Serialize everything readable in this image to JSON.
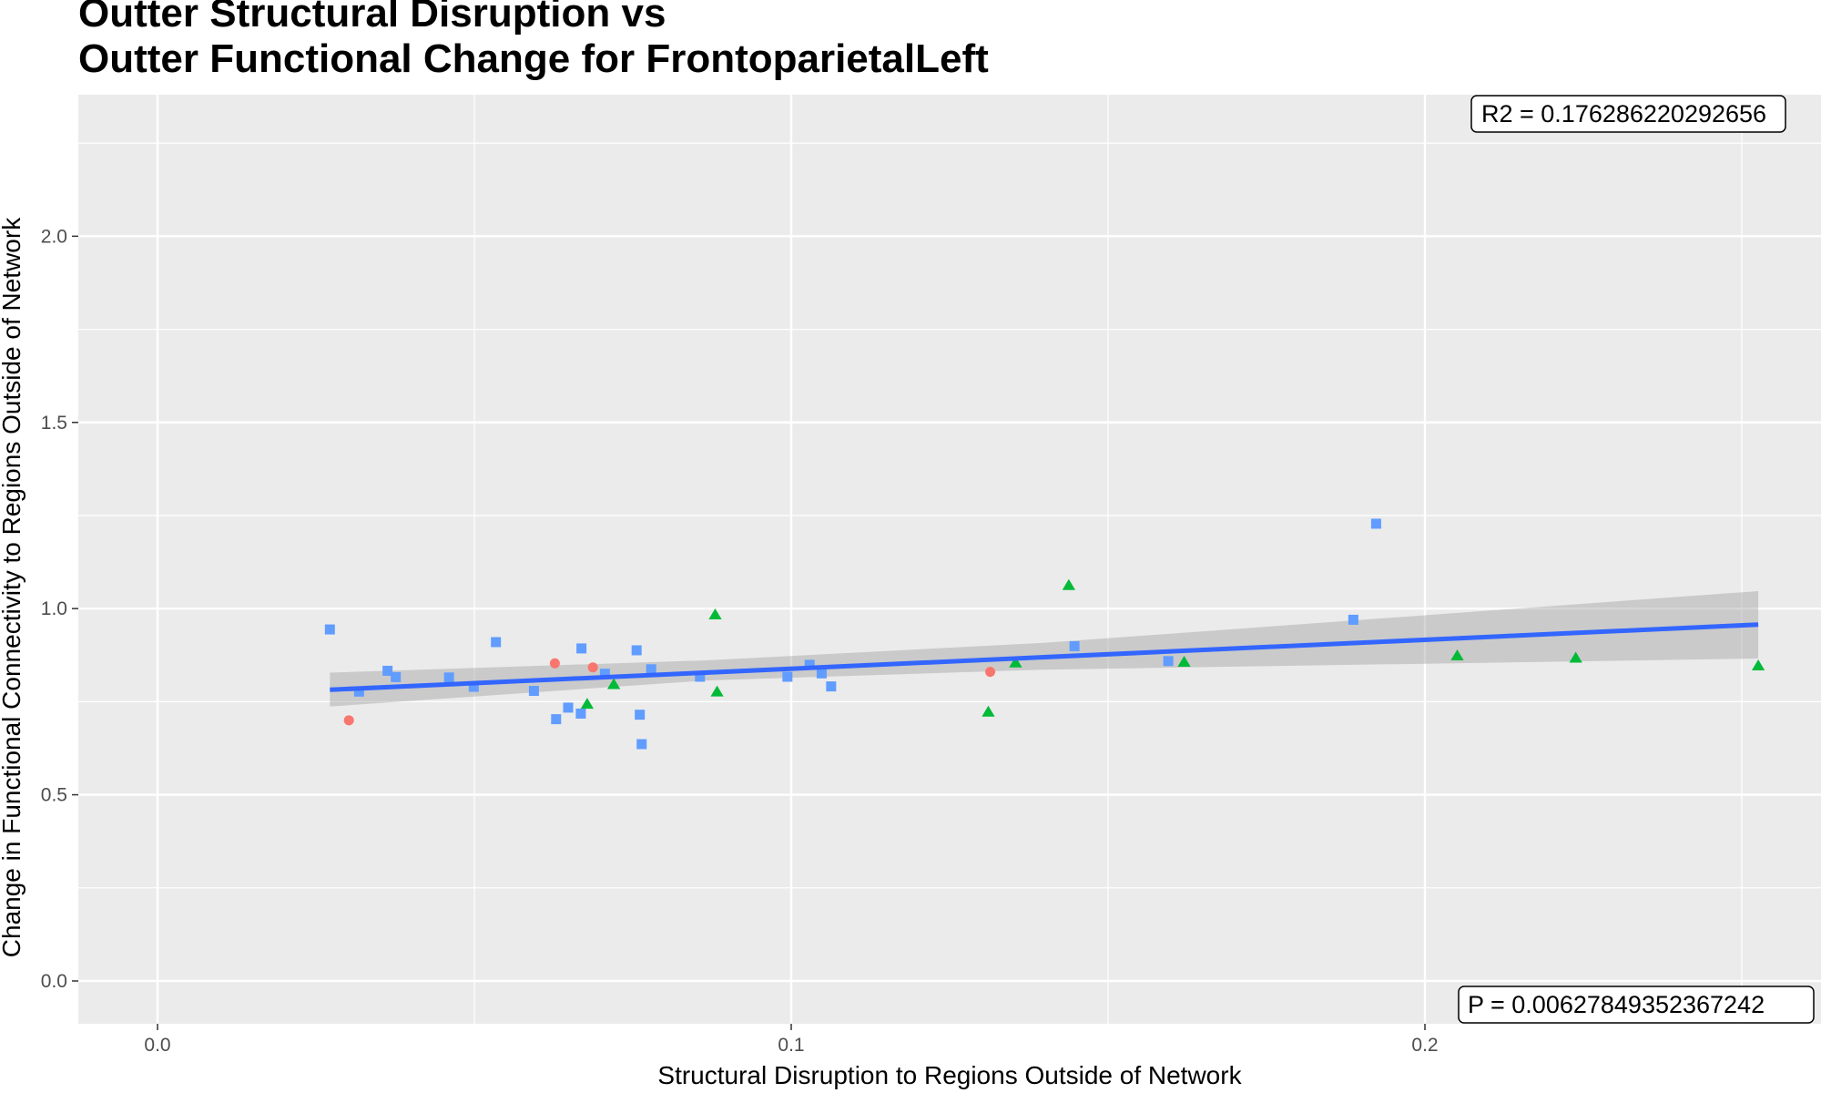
{
  "chart_data": {
    "type": "scatter",
    "title_lines": [
      "Outter Structural Disruption vs",
      "Outter Functional Change for FrontoparietalLeft"
    ],
    "xlabel": "Structural Disruption to Regions Outside of Network",
    "ylabel": "Change in Functional Connectivity to Regions Outside of Network",
    "xlim": [
      -0.0125,
      0.2625
    ],
    "ylim": [
      -0.115,
      2.38
    ],
    "x_ticks": [
      0.0,
      0.1,
      0.2
    ],
    "x_tick_labels": [
      "0.0",
      "0.1",
      "0.2"
    ],
    "y_ticks": [
      0.0,
      0.5,
      1.0,
      1.5,
      2.0
    ],
    "y_tick_labels": [
      "0.0",
      "0.5",
      "1.0",
      "1.5",
      "2.0"
    ],
    "grid": true,
    "background": "#ebebeb",
    "series": [
      {
        "color": "#f8766d",
        "shape": "circle",
        "points": [
          [
            0.0302,
            0.7
          ],
          [
            0.0627,
            0.853
          ],
          [
            0.0687,
            0.842
          ],
          [
            0.1314,
            0.83
          ]
        ]
      },
      {
        "color": "#00ba38",
        "shape": "triangle",
        "points": [
          [
            0.0678,
            0.742
          ],
          [
            0.072,
            0.795
          ],
          [
            0.088,
            0.982
          ],
          [
            0.0883,
            0.775
          ],
          [
            0.1311,
            0.721
          ],
          [
            0.1354,
            0.853
          ],
          [
            0.1438,
            1.061
          ],
          [
            0.162,
            0.855
          ],
          [
            0.2051,
            0.872
          ],
          [
            0.2238,
            0.866
          ],
          [
            0.2526,
            0.845
          ]
        ]
      },
      {
        "color": "#619cff",
        "shape": "square",
        "points": [
          [
            0.0272,
            0.944
          ],
          [
            0.0318,
            0.777
          ],
          [
            0.0363,
            0.833
          ],
          [
            0.0376,
            0.816
          ],
          [
            0.046,
            0.815
          ],
          [
            0.0499,
            0.79
          ],
          [
            0.0534,
            0.91
          ],
          [
            0.0594,
            0.779
          ],
          [
            0.0629,
            0.703
          ],
          [
            0.0648,
            0.734
          ],
          [
            0.0668,
            0.718
          ],
          [
            0.0669,
            0.893
          ],
          [
            0.0706,
            0.825
          ],
          [
            0.0756,
            0.888
          ],
          [
            0.0761,
            0.715
          ],
          [
            0.0764,
            0.636
          ],
          [
            0.0779,
            0.837
          ],
          [
            0.0856,
            0.817
          ],
          [
            0.0994,
            0.817
          ],
          [
            0.1029,
            0.849
          ],
          [
            0.1048,
            0.826
          ],
          [
            0.1063,
            0.791
          ],
          [
            0.1447,
            0.899
          ],
          [
            0.1595,
            0.859
          ],
          [
            0.1887,
            0.97
          ],
          [
            0.1923,
            1.228
          ]
        ]
      }
    ],
    "regression": {
      "color": "#3366ff",
      "x_range": [
        0.0272,
        0.2526
      ],
      "y_range": [
        0.782,
        0.957
      ],
      "ci_color": "#999999",
      "ci_band": {
        "x": [
          0.0272,
          0.0866,
          0.1399,
          0.2526
        ],
        "lower": [
          0.737,
          0.807,
          0.836,
          0.866
        ],
        "upper": [
          0.828,
          0.861,
          0.908,
          1.047
        ]
      }
    },
    "annotations": {
      "r2": "R2 =  0.176286220292656",
      "p": "P =  0.00627849352367242"
    }
  }
}
